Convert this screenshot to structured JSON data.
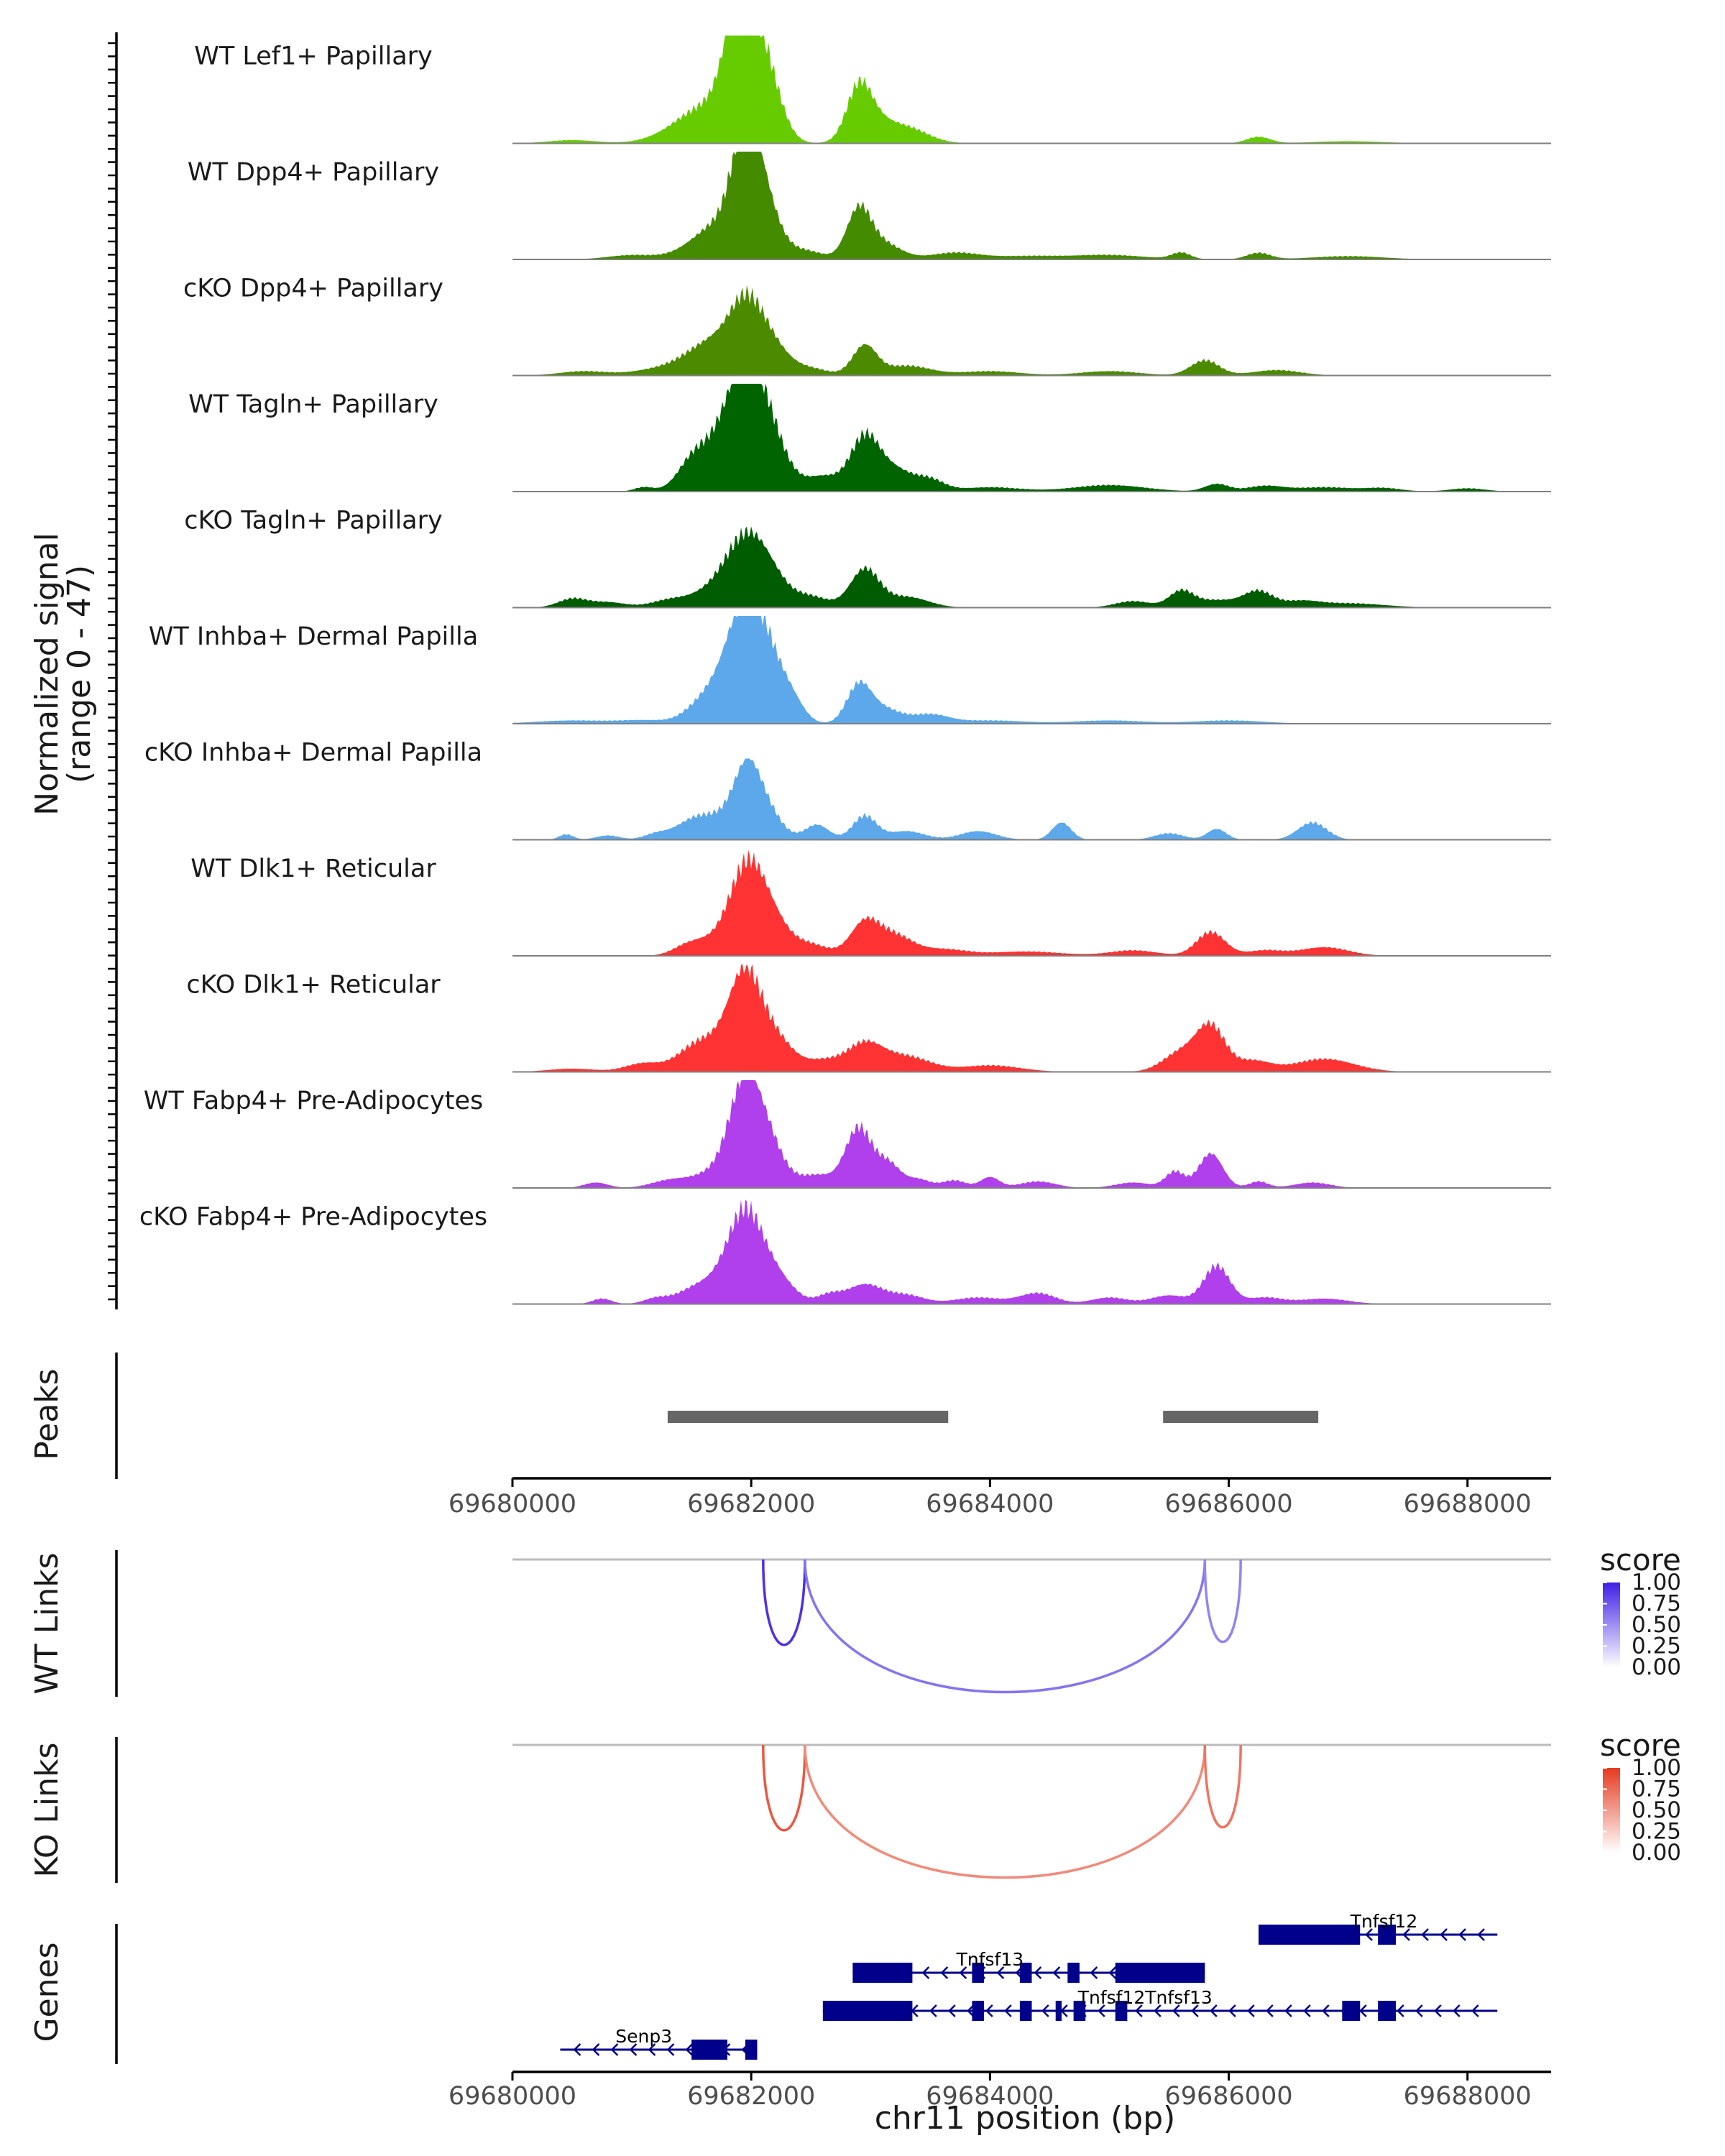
{
  "chart_data": {
    "type": "genome-browser-coverage",
    "region": {
      "chrom": "chr11",
      "start": 69680000,
      "end": 69688700
    },
    "y_axis_title": [
      "Normalized signal",
      "(range 0 - 47)"
    ],
    "x_axis_title": "chr11 position (bp)",
    "x_ticks": [
      69680000,
      69682000,
      69684000,
      69686000,
      69688000
    ],
    "x_tick_labels": [
      "69680000",
      "69682000",
      "69684000",
      "69686000",
      "69688000"
    ],
    "coverage_tracks": [
      {
        "name": "WT Lef1+ Papillary",
        "color": "#66CC00",
        "peaks": [
          [
            69680500,
            0.03,
            200
          ],
          [
            69681500,
            0.12,
            250
          ],
          [
            69681700,
            0.25,
            250
          ],
          [
            69681900,
            0.78,
            120
          ],
          [
            69682000,
            0.55,
            150
          ],
          [
            69682150,
            0.35,
            120
          ],
          [
            69682900,
            0.4,
            100
          ],
          [
            69683000,
            0.2,
            150
          ],
          [
            69683300,
            0.14,
            180
          ],
          [
            69686250,
            0.06,
            100
          ],
          [
            69687000,
            0.02,
            300
          ]
        ]
      },
      {
        "name": "WT Dpp4+ Papillary",
        "color": "#448B00",
        "peaks": [
          [
            69681000,
            0.04,
            200
          ],
          [
            69681600,
            0.12,
            200
          ],
          [
            69681800,
            0.25,
            200
          ],
          [
            69681950,
            0.88,
            110
          ],
          [
            69682100,
            0.5,
            130
          ],
          [
            69682450,
            0.08,
            150
          ],
          [
            69682900,
            0.44,
            100
          ],
          [
            69683100,
            0.15,
            150
          ],
          [
            69683700,
            0.06,
            200
          ],
          [
            69684300,
            0.03,
            300
          ],
          [
            69685000,
            0.04,
            300
          ],
          [
            69685600,
            0.06,
            80
          ],
          [
            69686250,
            0.06,
            100
          ],
          [
            69687000,
            0.03,
            300
          ]
        ]
      },
      {
        "name": "cKO Dpp4+ Papillary",
        "color": "#4C8B00",
        "peaks": [
          [
            69680600,
            0.04,
            200
          ],
          [
            69681200,
            0.05,
            200
          ],
          [
            69681600,
            0.12,
            200
          ],
          [
            69681800,
            0.25,
            250
          ],
          [
            69681950,
            0.42,
            130
          ],
          [
            69682150,
            0.25,
            150
          ],
          [
            69682500,
            0.06,
            150
          ],
          [
            69682950,
            0.27,
            100
          ],
          [
            69683300,
            0.09,
            200
          ],
          [
            69684000,
            0.04,
            250
          ],
          [
            69685000,
            0.04,
            250
          ],
          [
            69685800,
            0.14,
            120
          ],
          [
            69686400,
            0.05,
            200
          ]
        ]
      },
      {
        "name": "WT Tagln+ Papillary",
        "color": "#006400",
        "peaks": [
          [
            69681100,
            0.04,
            80
          ],
          [
            69681500,
            0.18,
            120
          ],
          [
            69681750,
            0.38,
            200
          ],
          [
            69681950,
            0.82,
            150
          ],
          [
            69682150,
            0.45,
            150
          ],
          [
            69682600,
            0.14,
            150
          ],
          [
            69682950,
            0.48,
            120
          ],
          [
            69683200,
            0.2,
            150
          ],
          [
            69683500,
            0.1,
            120
          ],
          [
            69684000,
            0.04,
            250
          ],
          [
            69685000,
            0.06,
            300
          ],
          [
            69685900,
            0.07,
            100
          ],
          [
            69686300,
            0.05,
            150
          ],
          [
            69686800,
            0.04,
            250
          ],
          [
            69687300,
            0.03,
            150
          ],
          [
            69688000,
            0.03,
            150
          ]
        ]
      },
      {
        "name": "cKO Tagln+ Papillary",
        "color": "#005C00",
        "peaks": [
          [
            69680500,
            0.08,
            120
          ],
          [
            69680800,
            0.05,
            150
          ],
          [
            69681300,
            0.06,
            150
          ],
          [
            69681700,
            0.16,
            200
          ],
          [
            69681950,
            0.52,
            160
          ],
          [
            69682150,
            0.25,
            150
          ],
          [
            69682500,
            0.1,
            150
          ],
          [
            69682950,
            0.35,
            120
          ],
          [
            69683300,
            0.1,
            180
          ],
          [
            69685200,
            0.06,
            150
          ],
          [
            69685600,
            0.14,
            100
          ],
          [
            69685900,
            0.07,
            200
          ],
          [
            69686250,
            0.14,
            120
          ],
          [
            69686600,
            0.05,
            150
          ],
          [
            69687000,
            0.04,
            300
          ]
        ]
      },
      {
        "name": "WT Inhba+ Dermal Papilla",
        "color": "#5DA8EA",
        "peaks": [
          [
            69680500,
            0.03,
            300
          ],
          [
            69681100,
            0.03,
            200
          ],
          [
            69681600,
            0.12,
            150
          ],
          [
            69681800,
            0.22,
            200
          ],
          [
            69681950,
            0.85,
            150
          ],
          [
            69682150,
            0.45,
            150
          ],
          [
            69682350,
            0.12,
            100
          ],
          [
            69682900,
            0.33,
            100
          ],
          [
            69683100,
            0.14,
            150
          ],
          [
            69683500,
            0.08,
            150
          ],
          [
            69684000,
            0.03,
            300
          ],
          [
            69685000,
            0.03,
            300
          ],
          [
            69686000,
            0.03,
            300
          ]
        ]
      },
      {
        "name": "cKO Inhba+ Dermal Papilla",
        "color": "#5DA8EA",
        "peaks": [
          [
            69680450,
            0.05,
            60
          ],
          [
            69680800,
            0.04,
            100
          ],
          [
            69681200,
            0.05,
            100
          ],
          [
            69681500,
            0.14,
            150
          ],
          [
            69681800,
            0.2,
            200
          ],
          [
            69681970,
            0.55,
            110
          ],
          [
            69682150,
            0.2,
            120
          ],
          [
            69682550,
            0.14,
            100
          ],
          [
            69682950,
            0.22,
            100
          ],
          [
            69683300,
            0.08,
            150
          ],
          [
            69683900,
            0.08,
            150
          ],
          [
            69684600,
            0.16,
            80
          ],
          [
            69685500,
            0.06,
            120
          ],
          [
            69685900,
            0.1,
            80
          ],
          [
            69686700,
            0.16,
            120
          ]
        ]
      },
      {
        "name": "WT Dlk1+ Reticular",
        "color": "#FF3333",
        "peaks": [
          [
            69681450,
            0.07,
            120
          ],
          [
            69681650,
            0.12,
            150
          ],
          [
            69681950,
            0.72,
            140
          ],
          [
            69682150,
            0.35,
            150
          ],
          [
            69682500,
            0.1,
            150
          ],
          [
            69682950,
            0.3,
            120
          ],
          [
            69683200,
            0.18,
            150
          ],
          [
            69683600,
            0.06,
            200
          ],
          [
            69684300,
            0.04,
            300
          ],
          [
            69685200,
            0.05,
            200
          ],
          [
            69685850,
            0.22,
            120
          ],
          [
            69686300,
            0.05,
            150
          ],
          [
            69686800,
            0.08,
            200
          ]
        ]
      },
      {
        "name": "cKO Dlk1+ Reticular",
        "color": "#FF3333",
        "peaks": [
          [
            69680500,
            0.03,
            200
          ],
          [
            69681100,
            0.08,
            150
          ],
          [
            69681500,
            0.14,
            150
          ],
          [
            69681750,
            0.25,
            200
          ],
          [
            69681950,
            0.75,
            130
          ],
          [
            69682200,
            0.3,
            150
          ],
          [
            69682600,
            0.1,
            150
          ],
          [
            69682950,
            0.25,
            150
          ],
          [
            69683300,
            0.14,
            200
          ],
          [
            69684000,
            0.06,
            250
          ],
          [
            69685600,
            0.18,
            150
          ],
          [
            69685850,
            0.4,
            120
          ],
          [
            69686200,
            0.1,
            150
          ],
          [
            69686800,
            0.12,
            250
          ]
        ]
      },
      {
        "name": "WT Fabp4+ Pre-Adipocytes",
        "color": "#B03FEC",
        "peaks": [
          [
            69680700,
            0.05,
            100
          ],
          [
            69681300,
            0.06,
            150
          ],
          [
            69681700,
            0.14,
            200
          ],
          [
            69681950,
            0.9,
            130
          ],
          [
            69682150,
            0.35,
            130
          ],
          [
            69682550,
            0.12,
            150
          ],
          [
            69682900,
            0.55,
            110
          ],
          [
            69683150,
            0.22,
            100
          ],
          [
            69683400,
            0.08,
            100
          ],
          [
            69683700,
            0.07,
            100
          ],
          [
            69684000,
            0.1,
            80
          ],
          [
            69684400,
            0.06,
            150
          ],
          [
            69685200,
            0.05,
            150
          ],
          [
            69685550,
            0.15,
            80
          ],
          [
            69685850,
            0.32,
            100
          ],
          [
            69686250,
            0.06,
            80
          ],
          [
            69686700,
            0.05,
            150
          ]
        ]
      },
      {
        "name": "cKO Fabp4+ Pre-Adipocytes",
        "color": "#B03FEC",
        "peaks": [
          [
            69680750,
            0.05,
            80
          ],
          [
            69681200,
            0.05,
            100
          ],
          [
            69681500,
            0.08,
            150
          ],
          [
            69681750,
            0.18,
            200
          ],
          [
            69681950,
            0.72,
            140
          ],
          [
            69682200,
            0.25,
            150
          ],
          [
            69682650,
            0.08,
            100
          ],
          [
            69682950,
            0.18,
            150
          ],
          [
            69683300,
            0.08,
            150
          ],
          [
            69683900,
            0.06,
            200
          ],
          [
            69684400,
            0.1,
            150
          ],
          [
            69685000,
            0.06,
            150
          ],
          [
            69685500,
            0.08,
            150
          ],
          [
            69685900,
            0.35,
            110
          ],
          [
            69686300,
            0.06,
            150
          ],
          [
            69686800,
            0.05,
            200
          ]
        ]
      }
    ],
    "peaks_track": {
      "title": "Peaks",
      "color": "#666666",
      "intervals": [
        [
          69681300,
          69683650
        ],
        [
          69685450,
          69686750
        ]
      ]
    },
    "links_tracks": [
      {
        "title": "WT Links",
        "legend_title": "score",
        "color_high": "#3F1FE6",
        "color_low": "#FFFFFF",
        "links": [
          {
            "start": 69682100,
            "end": 69682450,
            "score": 0.9
          },
          {
            "start": 69682450,
            "end": 69685800,
            "score": 0.5
          },
          {
            "start": 69685800,
            "end": 69686100,
            "score": 0.4
          }
        ]
      },
      {
        "title": "KO Links",
        "legend_title": "score",
        "color_high": "#E53A1F",
        "color_low": "#FFFFFF",
        "links": [
          {
            "start": 69682100,
            "end": 69682450,
            "score": 0.8
          },
          {
            "start": 69682450,
            "end": 69685800,
            "score": 0.45
          },
          {
            "start": 69685800,
            "end": 69686100,
            "score": 0.6
          }
        ]
      }
    ],
    "legend_breaks": [
      "1.00",
      "0.75",
      "0.50",
      "0.25",
      "0.00"
    ],
    "genes_track": {
      "title": "Genes",
      "color": "#00008B",
      "rows": [
        {
          "label": "Tnfsf12",
          "label_pos": 69687300,
          "start": 69686250,
          "end": 69688250,
          "blocks": [
            [
              69686250,
              69687100,
              "thick"
            ],
            [
              69687250,
              69687400,
              "thick"
            ]
          ]
        },
        {
          "label": "Tnfsf13",
          "label_pos": 69684000,
          "start": 69682850,
          "end": 69685800,
          "blocks": [
            [
              69682850,
              69683350,
              "thick"
            ],
            [
              69683850,
              69683950,
              "thick"
            ],
            [
              69684250,
              69684350,
              "thick"
            ],
            [
              69684650,
              69684750,
              "thick"
            ],
            [
              69685050,
              69685800,
              "thick"
            ]
          ]
        },
        {
          "label": "Tnfsf12Tnfsf13",
          "label_pos": 69685300,
          "start": 69682600,
          "end": 69688250,
          "blocks": [
            [
              69682600,
              69683350,
              "thick"
            ],
            [
              69683850,
              69683950,
              "thick"
            ],
            [
              69684250,
              69684350,
              "thick"
            ],
            [
              69684550,
              69684600,
              "thick"
            ],
            [
              69684700,
              69684800,
              "thick"
            ],
            [
              69685050,
              69685150,
              "thick"
            ],
            [
              69686950,
              69687100,
              "thick"
            ],
            [
              69687250,
              69687400,
              "thick"
            ]
          ]
        },
        {
          "label": "Senp3",
          "label_pos": 69681100,
          "start": 69680400,
          "end": 69682050,
          "blocks": [
            [
              69681500,
              69681800,
              "thick"
            ],
            [
              69681950,
              69682050,
              "thick"
            ]
          ]
        }
      ]
    }
  }
}
